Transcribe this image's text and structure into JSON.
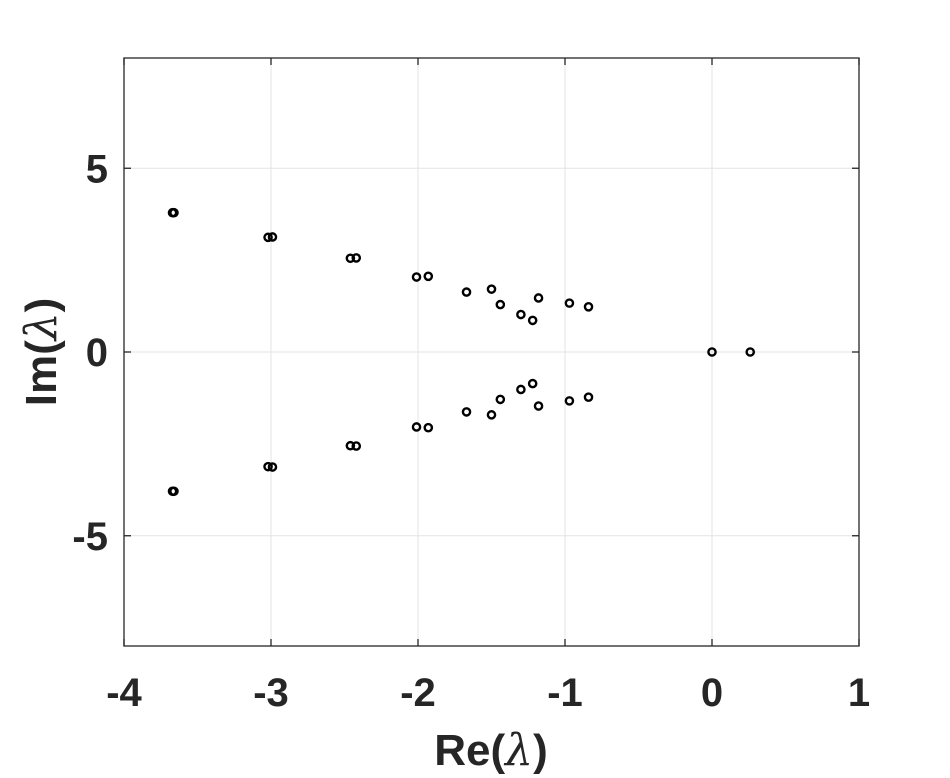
{
  "chart_data": {
    "type": "scatter",
    "title": "",
    "xlabel": "Re(λ)",
    "ylabel": "Im(λ)",
    "xlim": [
      -4,
      1
    ],
    "ylim": [
      -8,
      8
    ],
    "grid": true,
    "x_ticks": [
      -4,
      -3,
      -2,
      -1,
      0,
      1
    ],
    "x_tick_labels": [
      "-4",
      "-3",
      "-2",
      "-1",
      "0",
      "1"
    ],
    "y_ticks": [
      -5,
      0,
      5
    ],
    "y_tick_labels": [
      "-5",
      "0",
      "5"
    ],
    "marker_color": "#000000",
    "grid_color": "#e3e3e3",
    "axis_color": "#262626",
    "points": [
      {
        "x": -3.67,
        "y": 3.79
      },
      {
        "x": -3.66,
        "y": 3.79
      },
      {
        "x": -3.02,
        "y": 3.12
      },
      {
        "x": -2.99,
        "y": 3.13
      },
      {
        "x": -2.46,
        "y": 2.55
      },
      {
        "x": -2.42,
        "y": 2.56
      },
      {
        "x": -2.01,
        "y": 2.04
      },
      {
        "x": -1.93,
        "y": 2.06
      },
      {
        "x": -1.67,
        "y": 1.63
      },
      {
        "x": -1.5,
        "y": 1.71
      },
      {
        "x": -1.44,
        "y": 1.29
      },
      {
        "x": -1.18,
        "y": 1.47
      },
      {
        "x": -1.3,
        "y": 1.02
      },
      {
        "x": -1.22,
        "y": 0.86
      },
      {
        "x": -0.97,
        "y": 1.33
      },
      {
        "x": -0.84,
        "y": 1.23
      },
      {
        "x": 0.0,
        "y": 0.0
      },
      {
        "x": 0.26,
        "y": 0.0
      },
      {
        "x": -3.67,
        "y": -3.79
      },
      {
        "x": -3.66,
        "y": -3.79
      },
      {
        "x": -3.02,
        "y": -3.12
      },
      {
        "x": -2.99,
        "y": -3.13
      },
      {
        "x": -2.46,
        "y": -2.55
      },
      {
        "x": -2.42,
        "y": -2.56
      },
      {
        "x": -2.01,
        "y": -2.04
      },
      {
        "x": -1.93,
        "y": -2.06
      },
      {
        "x": -1.67,
        "y": -1.63
      },
      {
        "x": -1.5,
        "y": -1.71
      },
      {
        "x": -1.44,
        "y": -1.29
      },
      {
        "x": -1.18,
        "y": -1.47
      },
      {
        "x": -1.3,
        "y": -1.02
      },
      {
        "x": -1.22,
        "y": -0.86
      },
      {
        "x": -0.97,
        "y": -1.33
      },
      {
        "x": -0.84,
        "y": -1.23
      }
    ]
  }
}
